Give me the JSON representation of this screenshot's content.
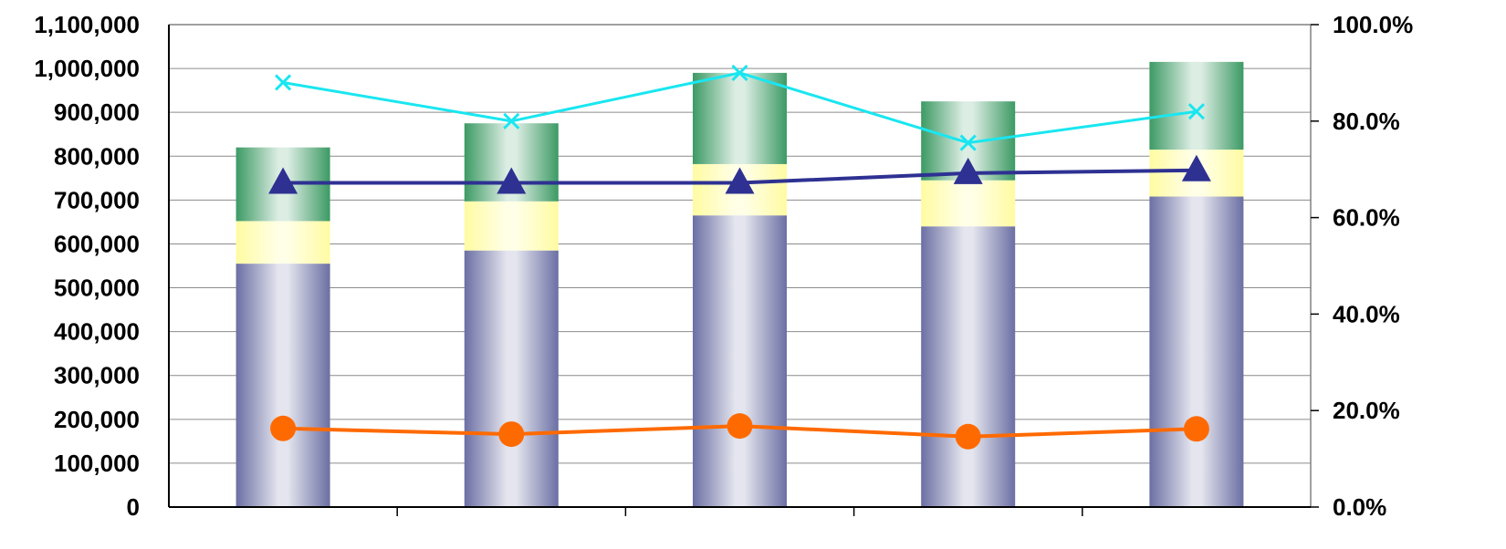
{
  "chart_data": {
    "type": "bar",
    "title": "",
    "xlabel": "",
    "ylabel": "",
    "y2label": "",
    "categories": [
      "",
      "",
      "",
      "",
      ""
    ],
    "stacked": true,
    "grid": true,
    "legend": "none",
    "ylim": [
      0,
      1100000
    ],
    "y2lim": [
      0,
      1.0
    ],
    "yticks": [
      "0",
      "100,000",
      "200,000",
      "300,000",
      "400,000",
      "500,000",
      "600,000",
      "700,000",
      "800,000",
      "900,000",
      "1,000,000",
      "1,100,000"
    ],
    "y2ticks": [
      "0.0%",
      "20.0%",
      "40.0%",
      "60.0%",
      "80.0%",
      "100.0%"
    ],
    "bar_series": [
      {
        "color": "#6b6fa3",
        "values": [
          555000,
          585000,
          665000,
          640000,
          708000
        ]
      },
      {
        "color": "#ffffb0",
        "values": [
          97000,
          112000,
          117000,
          105000,
          107000
        ]
      },
      {
        "color": "#3c9a64",
        "values": [
          168000,
          178000,
          208000,
          180000,
          200000
        ]
      }
    ],
    "line_series": [
      {
        "color": "#2e3192",
        "marker": "triangle",
        "values": [
          0.672,
          0.672,
          0.672,
          0.692,
          0.698
        ]
      },
      {
        "color": "#19e6f0",
        "marker": "x",
        "values": [
          0.88,
          0.8,
          0.9,
          0.755,
          0.82
        ]
      },
      {
        "color": "#ff6a00",
        "marker": "circle",
        "values": [
          0.163,
          0.151,
          0.168,
          0.146,
          0.162
        ]
      }
    ]
  }
}
